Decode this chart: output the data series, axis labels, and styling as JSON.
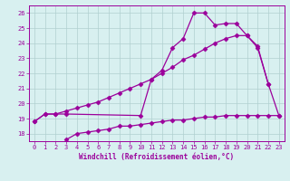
{
  "series": {
    "top": {
      "x": [
        0,
        1,
        2,
        3,
        10,
        11,
        12,
        13,
        14,
        15,
        16,
        17,
        18,
        19,
        20,
        21,
        22
      ],
      "y": [
        18.8,
        19.3,
        19.3,
        19.3,
        19.2,
        21.6,
        22.2,
        23.7,
        24.3,
        26.0,
        26.0,
        25.2,
        25.3,
        25.3,
        24.5,
        23.8,
        21.3
      ]
    },
    "mid": {
      "x": [
        0,
        1,
        2,
        3,
        4,
        5,
        6,
        7,
        8,
        9,
        10,
        11,
        12,
        13,
        14,
        15,
        16,
        17,
        18,
        19,
        20,
        21,
        22,
        23
      ],
      "y": [
        18.8,
        19.3,
        19.3,
        19.5,
        19.7,
        19.9,
        20.1,
        20.4,
        20.7,
        21.0,
        21.3,
        21.6,
        22.0,
        22.4,
        22.9,
        23.2,
        23.6,
        24.0,
        24.3,
        24.5,
        24.5,
        23.7,
        21.3,
        19.2
      ]
    },
    "bot": {
      "x": [
        3,
        4,
        5,
        6,
        7,
        8,
        9,
        10,
        11,
        12,
        13,
        14,
        15,
        16,
        17,
        18,
        19,
        20,
        21,
        22,
        23
      ],
      "y": [
        17.6,
        18.0,
        18.1,
        18.2,
        18.3,
        18.5,
        18.5,
        18.6,
        18.7,
        18.8,
        18.9,
        18.9,
        19.0,
        19.1,
        19.1,
        19.2,
        19.2,
        19.2,
        19.2,
        19.2,
        19.2
      ]
    }
  },
  "color": "#9b009b",
  "bg_color": "#d8f0f0",
  "grid_color": "#b0d0d0",
  "ylim": [
    17.5,
    26.5
  ],
  "yticks": [
    18,
    19,
    20,
    21,
    22,
    23,
    24,
    25,
    26
  ],
  "xlim": [
    -0.5,
    23.5
  ],
  "xticks": [
    0,
    1,
    2,
    3,
    4,
    5,
    6,
    7,
    8,
    9,
    10,
    11,
    12,
    13,
    14,
    15,
    16,
    17,
    18,
    19,
    20,
    21,
    22,
    23
  ],
  "xlabel": "Windchill (Refroidissement éolien,°C)",
  "markersize": 2.5,
  "linewidth": 0.9
}
